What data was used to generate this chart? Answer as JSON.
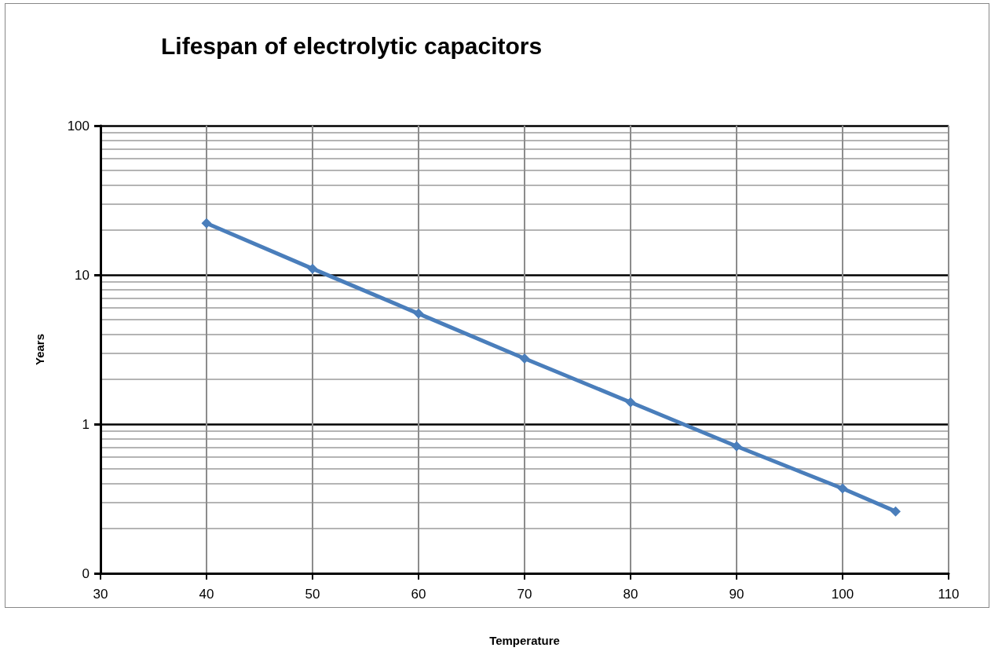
{
  "chart_data": {
    "type": "line",
    "title": "Lifespan of electrolytic capacitors",
    "xlabel": "Temperature",
    "ylabel": "Years",
    "x": [
      40,
      50,
      60,
      70,
      80,
      90,
      100,
      105
    ],
    "series": [
      {
        "color": "#4a7ebb",
        "values": [
          22.2,
          11,
          5.5,
          2.75,
          1.4,
          0.71,
          0.37,
          0.26
        ]
      }
    ],
    "xlim": [
      30,
      110
    ],
    "xticks": [
      30,
      40,
      50,
      60,
      70,
      80,
      90,
      100,
      110
    ],
    "ylim": [
      0.1,
      100
    ],
    "yticks": [
      {
        "value": 0.1,
        "label": "0"
      },
      1,
      10,
      100
    ],
    "log": "y",
    "grid": true,
    "marker": "diamond",
    "line_style": "solid"
  }
}
